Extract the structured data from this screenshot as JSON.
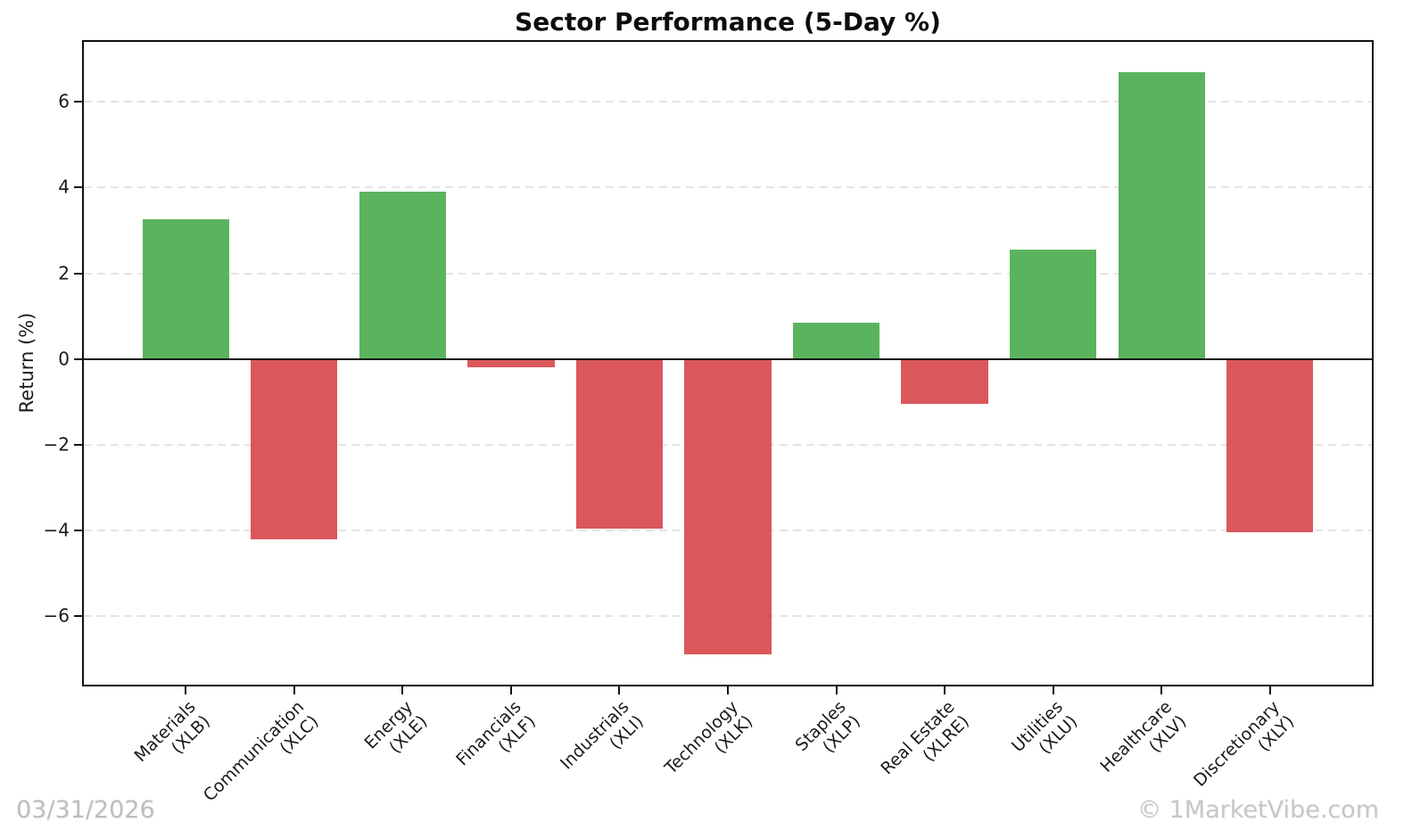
{
  "title": "Sector Performance (5-Day %)",
  "footer": {
    "date": "03/31/2026",
    "watermark": "© 1MarketVibe.com"
  },
  "chart_data": {
    "type": "bar",
    "title": "Sector Performance (5-Day %)",
    "xlabel": "",
    "ylabel": "Return (%)",
    "ylim": [
      -7.6,
      7.4
    ],
    "yticks": [
      6,
      4,
      2,
      0,
      -2,
      -4,
      -6
    ],
    "grid": "horizontal dashed gridlines at yticks, solid black zero line",
    "legend": "none",
    "categories": [
      [
        "Materials",
        "(XLB)"
      ],
      [
        "Communication",
        "(XLC)"
      ],
      [
        "Energy",
        "(XLE)"
      ],
      [
        "Financials",
        "(XLF)"
      ],
      [
        "Industrials",
        "(XLI)"
      ],
      [
        "Technology",
        "(XLK)"
      ],
      [
        "Staples",
        "(XLP)"
      ],
      [
        "Real Estate",
        "(XLRE)"
      ],
      [
        "Utilities",
        "(XLU)"
      ],
      [
        "Healthcare",
        "(XLV)"
      ],
      [
        "Discretionary",
        "(XLY)"
      ]
    ],
    "tickers": [
      "XLB",
      "XLC",
      "XLE",
      "XLF",
      "XLI",
      "XLK",
      "XLP",
      "XLRE",
      "XLU",
      "XLV",
      "XLY"
    ],
    "values": [
      3.25,
      -4.2,
      3.9,
      -0.2,
      -3.95,
      -6.9,
      0.85,
      -1.05,
      2.55,
      6.7,
      -4.05
    ],
    "colors": {
      "positive": "#55b25a",
      "negative": "#d95356",
      "gridline": "#e4e4e4",
      "axis": "#111111"
    }
  }
}
